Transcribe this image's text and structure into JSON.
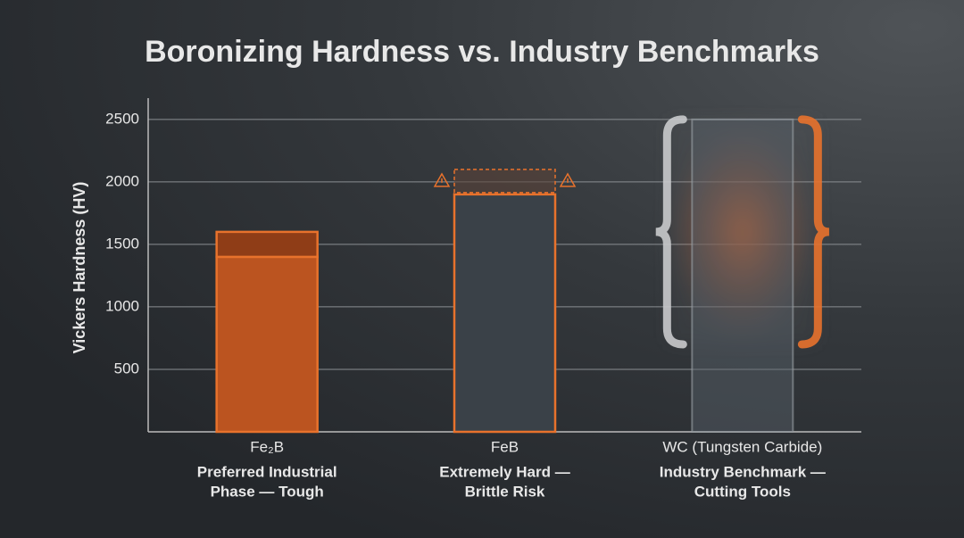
{
  "chart_data": {
    "type": "bar",
    "title": "Boronizing Hardness vs. Industry Benchmarks",
    "y_label": "Vickers Hardness (HV)",
    "categories": [
      "Fe₂B",
      "FeB",
      "WC (Tungsten Carbide)"
    ],
    "notes": [
      [
        "Preferred Industrial",
        "Phase — Tough"
      ],
      [
        "Extremely Hard —",
        "Brittle Risk"
      ],
      [
        "Industry Benchmark —",
        "Cutting Tools"
      ]
    ],
    "values": [
      1400,
      1900,
      2500
    ],
    "ranges": [
      [
        1400,
        1600
      ],
      [
        1900,
        2100
      ],
      [
        700,
        2500
      ]
    ],
    "range_styles": [
      "cap",
      "dashed",
      "brace"
    ],
    "colors": [
      "#bb5420",
      "#3a4148",
      "#59626a"
    ],
    "accent": "#e8722c",
    "ylim": [
      0,
      2670
    ],
    "yticks": [
      500,
      1000,
      1500,
      2000,
      2500
    ],
    "grid": true
  }
}
